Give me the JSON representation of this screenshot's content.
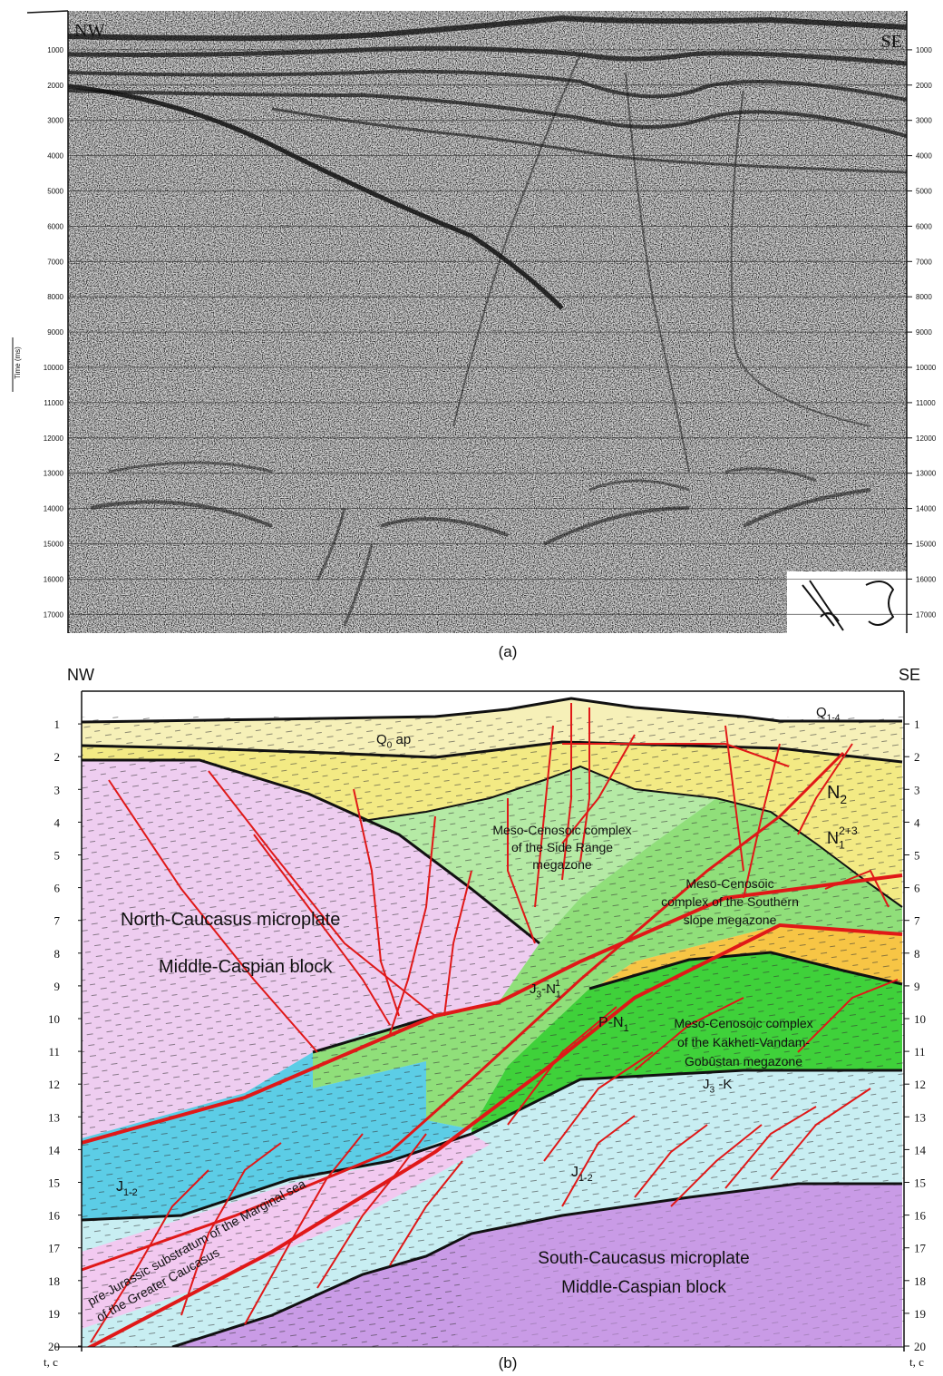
{
  "panel_a": {
    "caption": "(a)",
    "left_label": "NW",
    "right_label": "SE",
    "axis_title": "Time (ms)",
    "ticks": [
      1000,
      2000,
      3000,
      4000,
      5000,
      6000,
      7000,
      8000,
      9000,
      10000,
      11000,
      12000,
      13000,
      14000,
      15000,
      16000,
      17000
    ]
  },
  "panel_b": {
    "caption": "(b)",
    "left_label": "NW",
    "right_label": "SE",
    "axis_unit": "t, c",
    "ticks": [
      1,
      2,
      3,
      4,
      5,
      6,
      7,
      8,
      9,
      10,
      11,
      12,
      13,
      14,
      15,
      16,
      17,
      18,
      19,
      20
    ],
    "labels": [
      {
        "lines": [
          [
            {
              "text": "Q"
            },
            {
              "sub": "1-4"
            }
          ]
        ]
      },
      {
        "lines": [
          [
            {
              "text": "Q"
            },
            {
              "sub": "0"
            },
            {
              "text": " ap"
            }
          ]
        ]
      },
      {
        "lines": [
          [
            {
              "text": "N"
            },
            {
              "sub": "2"
            }
          ]
        ]
      },
      {
        "lines": [
          [
            {
              "text": "N"
            },
            {
              "sub": "1"
            },
            {
              "sup": "2+3"
            }
          ]
        ]
      },
      {
        "lines": [
          "Meso-Cenosoic complex",
          "of the Side Range",
          "megazone"
        ]
      },
      {
        "lines": [
          "Meso-Cenosoic",
          "complex of the Southern",
          "slope megazone"
        ]
      },
      {
        "lines": [
          "North-Caucasus microplate"
        ]
      },
      {
        "lines": [
          "Middle-Caspian block"
        ]
      },
      {
        "lines": [
          [
            {
              "text": "J"
            },
            {
              "sub": "3"
            },
            {
              "text": "-N"
            },
            {
              "sub": "1"
            },
            {
              "sup": "1"
            }
          ]
        ]
      },
      {
        "lines": [
          [
            {
              "text": "P-N"
            },
            {
              "sub": "1"
            }
          ]
        ]
      },
      {
        "lines": [
          "Meso-Cenosoic complex",
          "of the Kakheti-Vandam-",
          "Gobûstan megazone"
        ]
      },
      {
        "lines": [
          [
            {
              "text": "J"
            },
            {
              "sub": "3"
            },
            {
              "text": " -K"
            }
          ]
        ]
      },
      {
        "lines": [
          [
            {
              "text": "J"
            },
            {
              "sub": "1-2"
            }
          ]
        ]
      },
      {
        "lines": [
          [
            {
              "text": "J"
            },
            {
              "sub": "1-2"
            }
          ]
        ]
      },
      {
        "lines": [
          "pre-Jurassic substratum of the Marginal sea",
          "of the Greater Caucasus"
        ]
      },
      {
        "lines": [
          "South-Caucasus microplate",
          "Middle-Caspian block"
        ]
      }
    ]
  }
}
